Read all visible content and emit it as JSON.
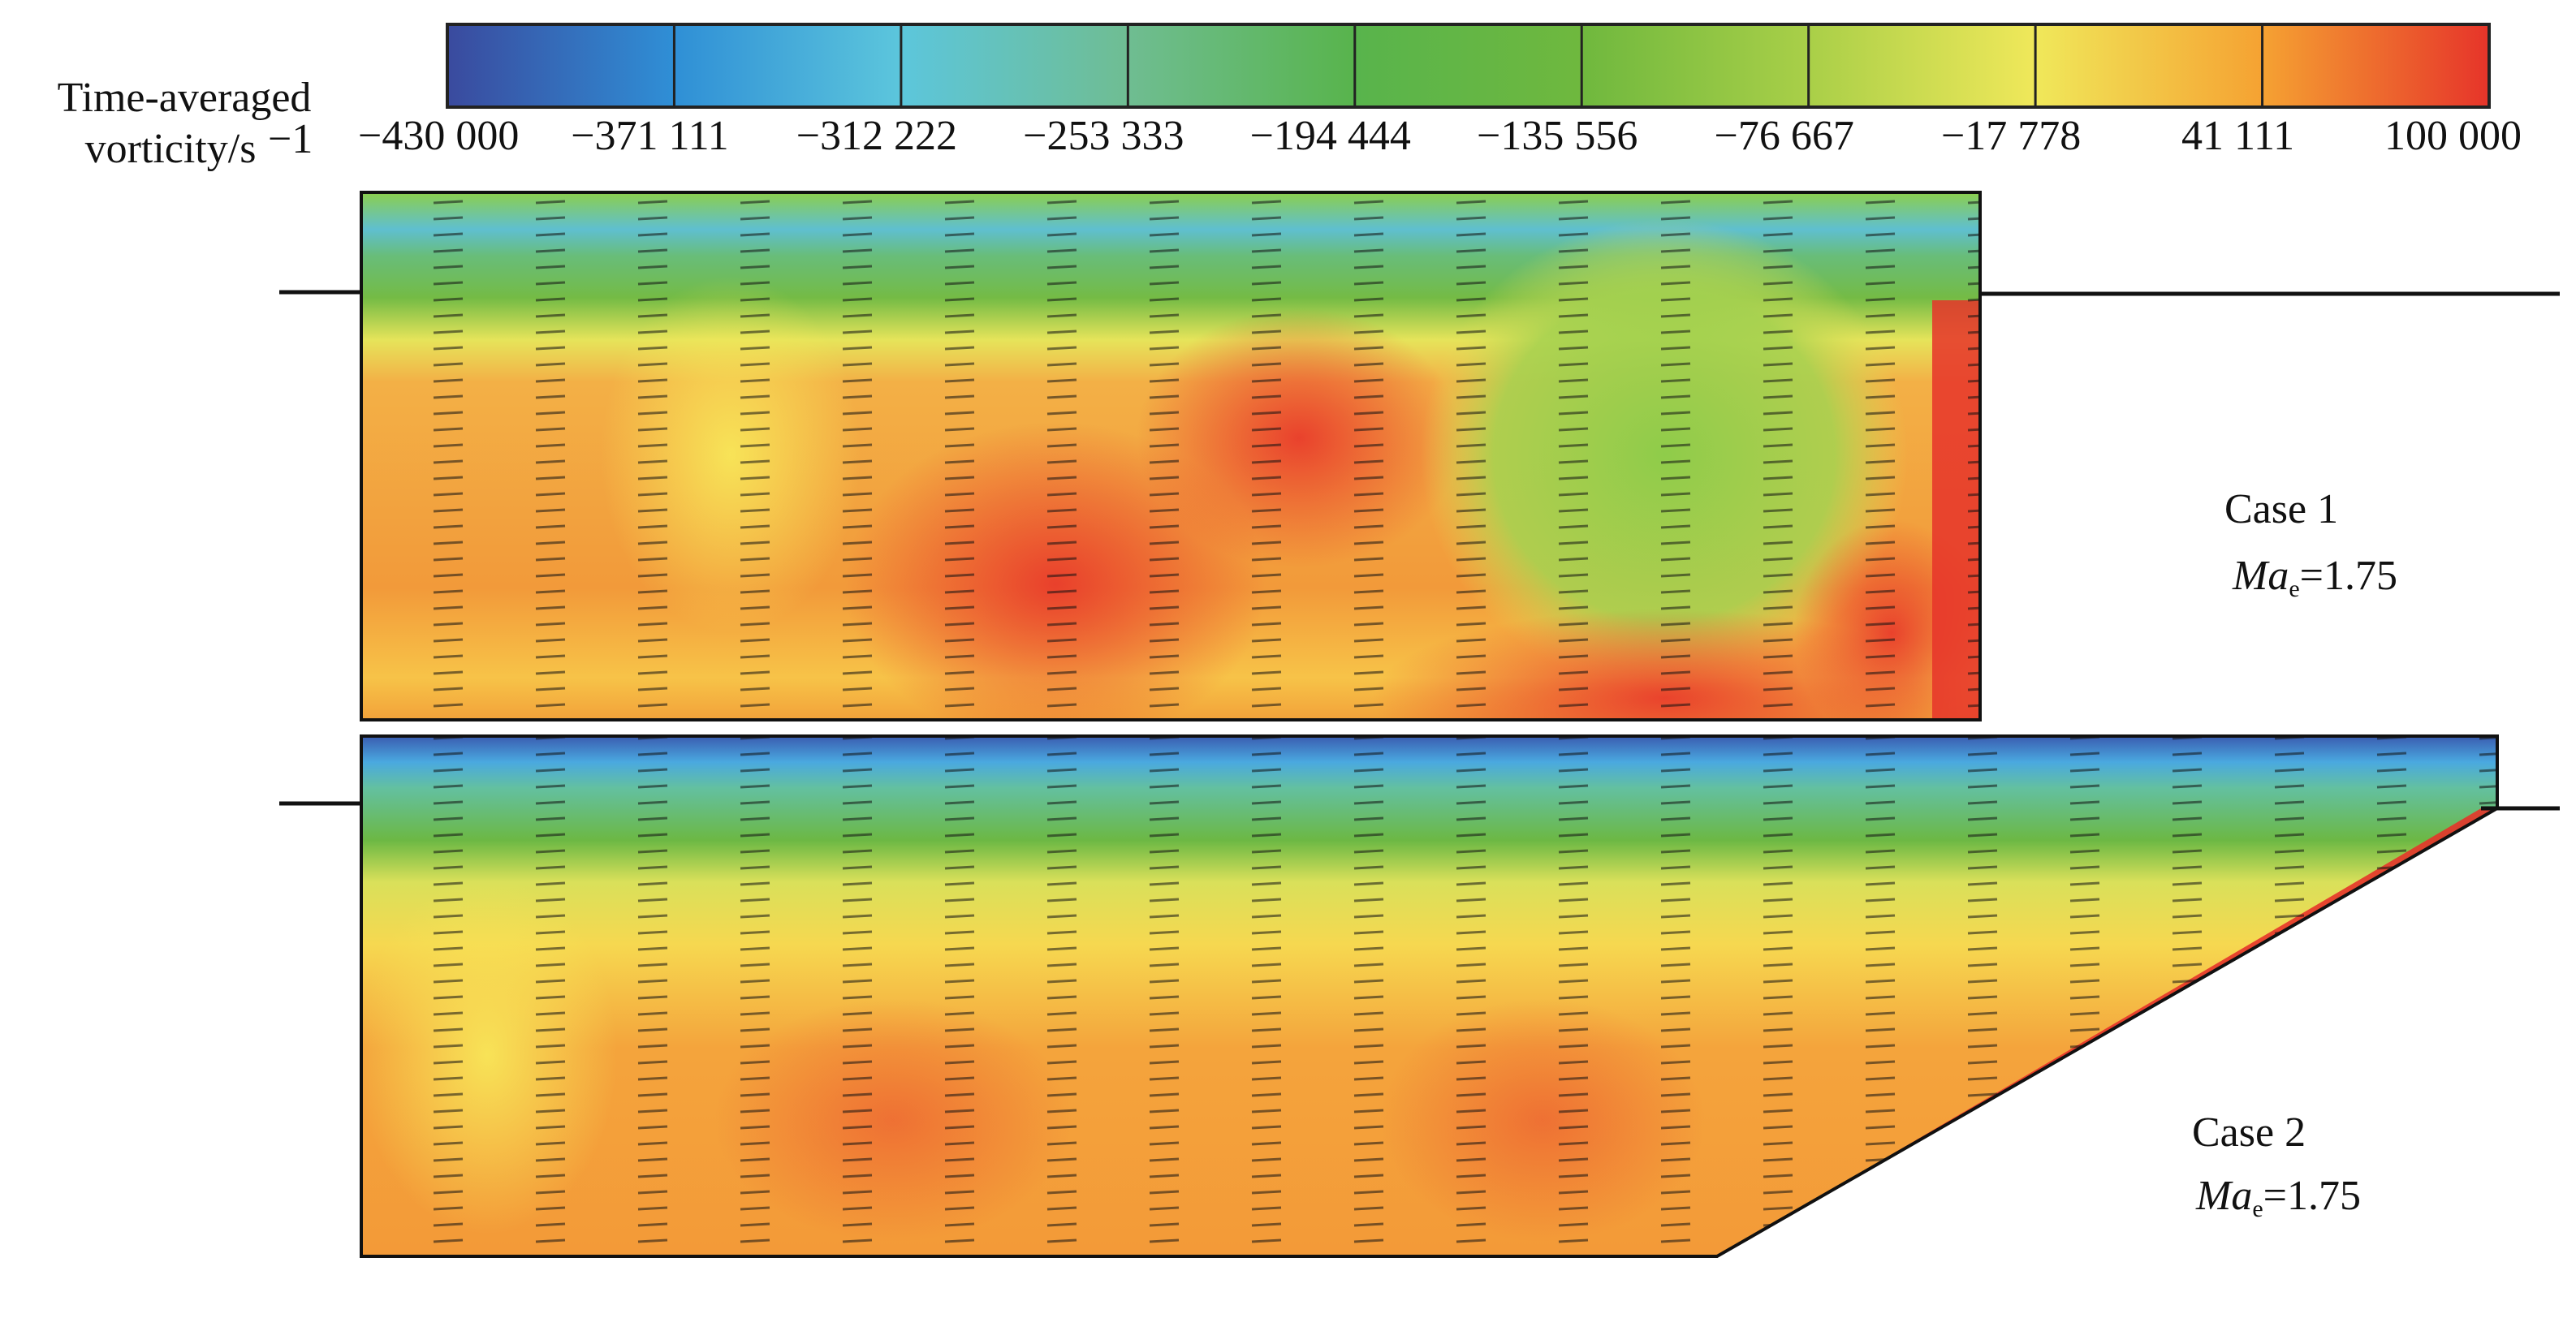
{
  "chart_data": {
    "type": "contour",
    "colorbar_label": {
      "lines": [
        "Time-averaged",
        "vorticity/s"
      ],
      "superscript": "−1"
    },
    "zlim": [
      -430000,
      100000
    ],
    "zticks": [
      {
        "value": -430000,
        "label": "−430 000"
      },
      {
        "value": -371111,
        "label": "−371 111"
      },
      {
        "value": -312222,
        "label": "−312 222"
      },
      {
        "value": -253333,
        "label": "−253 333"
      },
      {
        "value": -194444,
        "label": "−194 444"
      },
      {
        "value": -135556,
        "label": "−135 556"
      },
      {
        "value": -76667,
        "label": "−76 667"
      },
      {
        "value": -17778,
        "label": "−17 778"
      },
      {
        "value": 41111,
        "label": "41 111"
      },
      {
        "value": 100000,
        "label": "100 000"
      }
    ],
    "colormap": [
      "#3a4a9e",
      "#2f8fd6",
      "#5cc6dc",
      "#6fbd92",
      "#58b44c",
      "#6fb83e",
      "#a9cf48",
      "#f0e85a",
      "#f5a232",
      "#e6342a"
    ],
    "panels": [
      {
        "name": "Case 1",
        "mach_symbol": "Ma",
        "mach_subscript": "e",
        "mach_value": "=1.75"
      },
      {
        "name": "Case 2",
        "mach_symbol": "Ma",
        "mach_subscript": "e",
        "mach_value": "=1.75"
      }
    ]
  }
}
